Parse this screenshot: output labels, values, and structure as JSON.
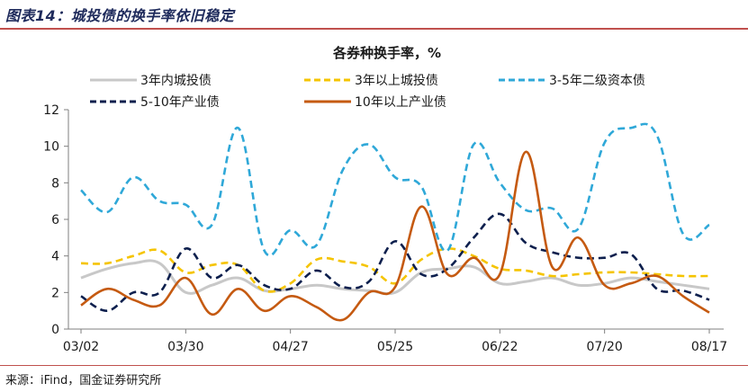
{
  "figure": {
    "label": "图表14：城投债的换手率依旧稳定",
    "source": "来源：iFind，国金证券研究所"
  },
  "chart_data": {
    "type": "line",
    "title": "各券种换手率，%",
    "xlabel": "",
    "ylabel": "",
    "ylim": [
      0,
      12
    ],
    "yticks": [
      0,
      2,
      4,
      6,
      8,
      10,
      12
    ],
    "x_tick_labels": [
      "03/02",
      "03/30",
      "04/27",
      "05/25",
      "06/22",
      "07/20",
      "08/17"
    ],
    "x": [
      "03/02",
      "03/09",
      "03/16",
      "03/23",
      "03/30",
      "04/06",
      "04/13",
      "04/20",
      "04/27",
      "05/04",
      "05/11",
      "05/18",
      "05/25",
      "06/01",
      "06/08",
      "06/15",
      "06/22",
      "06/29",
      "07/06",
      "07/13",
      "07/20",
      "07/27",
      "08/03",
      "08/10",
      "08/17"
    ],
    "grid": false,
    "legend_position": "top",
    "series": [
      {
        "name": "3年内城投债",
        "color": "#c8c8c8",
        "dash": "solid",
        "values": [
          2.8,
          3.3,
          3.6,
          3.6,
          2.0,
          2.4,
          2.8,
          2.1,
          2.2,
          2.4,
          2.2,
          2.1,
          2.0,
          3.1,
          3.3,
          3.4,
          2.5,
          2.6,
          2.8,
          2.4,
          2.5,
          2.8,
          2.6,
          2.4,
          2.2
        ]
      },
      {
        "name": "3年以上城投债",
        "color": "#f5c400",
        "dash": "dash",
        "values": [
          3.6,
          3.6,
          4.0,
          4.3,
          3.1,
          3.5,
          3.5,
          2.1,
          2.5,
          3.8,
          3.7,
          3.4,
          2.5,
          3.8,
          4.4,
          4.0,
          3.3,
          3.2,
          2.9,
          3.0,
          3.1,
          3.1,
          3.0,
          2.9,
          2.9
        ]
      },
      {
        "name": "3-5年二级资本债",
        "color": "#2fa8d8",
        "dash": "dash",
        "values": [
          7.6,
          6.4,
          8.3,
          7.0,
          6.8,
          5.7,
          11.0,
          4.3,
          5.4,
          4.6,
          8.7,
          10.1,
          8.3,
          7.8,
          4.3,
          10.1,
          8.0,
          6.5,
          6.6,
          5.5,
          10.2,
          11.0,
          10.6,
          5.2,
          5.7
        ]
      },
      {
        "name": "5-10年产业债",
        "color": "#0d1f4d",
        "dash": "dash",
        "values": [
          1.8,
          1.0,
          2.0,
          2.0,
          4.4,
          2.8,
          3.5,
          2.4,
          2.2,
          3.2,
          2.3,
          2.6,
          4.8,
          3.0,
          3.3,
          5.0,
          6.3,
          4.7,
          4.2,
          3.9,
          3.9,
          4.1,
          2.2,
          2.1,
          1.6
        ]
      },
      {
        "name": "10年以上产业债",
        "color": "#c55a11",
        "dash": "solid",
        "values": [
          1.3,
          2.2,
          1.6,
          1.3,
          2.8,
          0.8,
          2.2,
          1.0,
          1.8,
          1.2,
          0.5,
          2.0,
          2.3,
          6.7,
          3.0,
          3.9,
          3.0,
          9.7,
          3.4,
          5.0,
          2.4,
          2.5,
          2.9,
          1.8,
          0.9
        ]
      }
    ]
  }
}
